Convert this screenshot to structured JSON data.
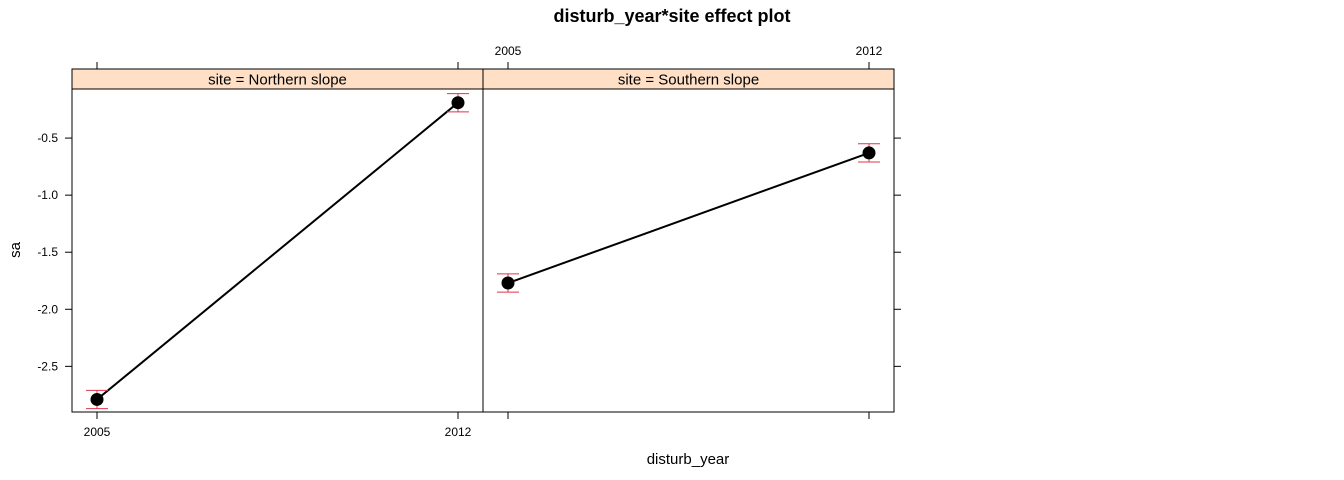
{
  "chart_data": {
    "type": "line",
    "title": "disturb_year*site effect plot",
    "xlabel": "disturb_year",
    "ylabel": "sa",
    "x": [
      "2005",
      "2012"
    ],
    "ylim": [
      -2.9,
      -0.07
    ],
    "yticks": [
      -2.5,
      -2.0,
      -1.5,
      -1.0,
      -0.5
    ],
    "yticklabels": [
      "-2.5",
      "-2.0",
      "-1.5",
      "-1.0",
      "-0.5"
    ],
    "colors": {
      "strip_bg": "#ffe0c6",
      "line": "#000000",
      "point": "#000000",
      "errorbar": "#e0344b"
    },
    "panels": [
      {
        "strip": "site = Northern slope",
        "values": [
          -2.79,
          -0.19
        ],
        "lower": [
          -2.87,
          -0.27
        ],
        "upper": [
          -2.71,
          -0.11
        ]
      },
      {
        "strip": "site = Southern slope",
        "values": [
          -1.77,
          -0.63
        ],
        "lower": [
          -1.85,
          -0.71
        ],
        "upper": [
          -1.69,
          -0.55
        ]
      }
    ]
  }
}
